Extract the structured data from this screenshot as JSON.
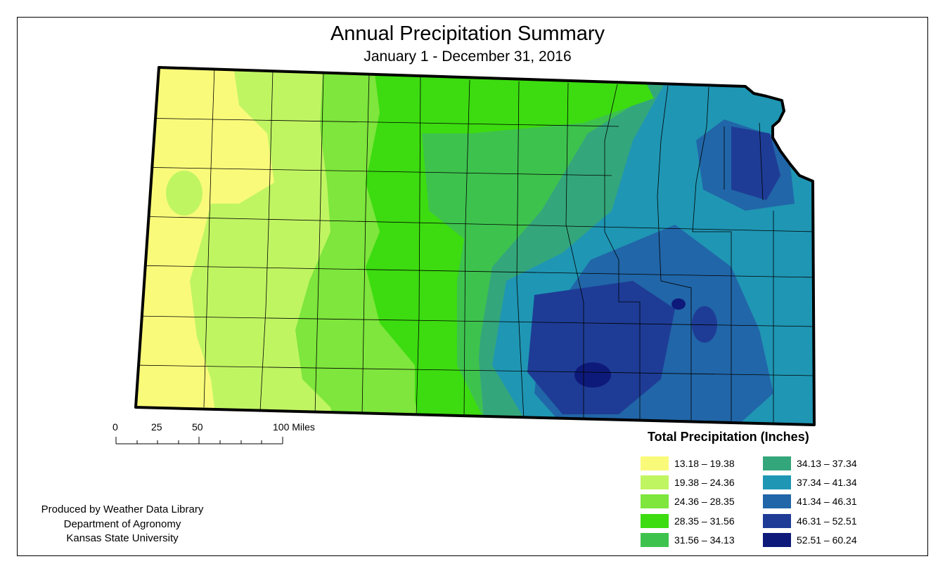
{
  "title": "Annual Precipitation Summary",
  "subtitle": "January 1 - December 31, 2016",
  "scale_bar": {
    "labels": [
      "0",
      "25",
      "50",
      "100 Miles"
    ]
  },
  "legend": {
    "title": "Total Precipitation (Inches)",
    "classes": [
      {
        "label": "13.18 – 19.38",
        "color": "#fafa7a"
      },
      {
        "label": "19.38 – 24.36",
        "color": "#c0f562"
      },
      {
        "label": "24.36 – 28.35",
        "color": "#7ee63c"
      },
      {
        "label": "28.35 – 31.56",
        "color": "#3cdc10"
      },
      {
        "label": "31.56 – 34.13",
        "color": "#3ec24e"
      },
      {
        "label": "34.13 – 37.34",
        "color": "#34a67c"
      },
      {
        "label": "37.34 – 41.34",
        "color": "#1f96b4"
      },
      {
        "label": "41.34 – 46.31",
        "color": "#2166a8"
      },
      {
        "label": "46.31 – 52.51",
        "color": "#1e3c96"
      },
      {
        "label": "52.51 – 60.24",
        "color": "#0e1a7a"
      }
    ]
  },
  "credits": [
    "Produced by Weather Data Library",
    "Department of Agronomy",
    "Kansas State University"
  ],
  "map_region": "Kansas"
}
